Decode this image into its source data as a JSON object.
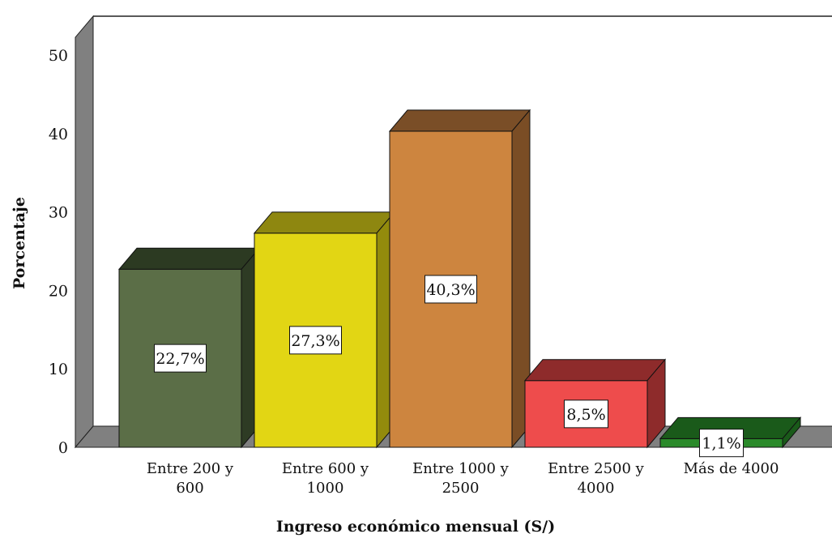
{
  "chart_data": {
    "type": "bar",
    "style": "3d",
    "categories": [
      [
        "Entre 200 y",
        "600"
      ],
      [
        "Entre 600 y",
        "1000"
      ],
      [
        "Entre 1000 y",
        "2500"
      ],
      [
        "Entre 2500 y",
        "4000"
      ],
      [
        "Más de 4000"
      ]
    ],
    "values": [
      22.7,
      27.3,
      40.3,
      8.5,
      1.1
    ],
    "data_labels": [
      "22,7%",
      "27,3%",
      "40,3%",
      "8,5%",
      "1,1%"
    ],
    "colors": [
      {
        "front": "#5b6e47",
        "top": "#2c3a22",
        "side": "#2e3b24"
      },
      {
        "front": "#e2d614",
        "top": "#8e8710",
        "side": "#938b0c"
      },
      {
        "front": "#cd853f",
        "top": "#7a4e27",
        "side": "#7a4d25"
      },
      {
        "front": "#ee4c4c",
        "top": "#8e2b2b",
        "side": "#8e2b2b"
      },
      {
        "front": "#2a8a2a",
        "top": "#1a5a1a",
        "side": "#1a5a1a"
      }
    ],
    "xlabel": "Ingreso económico mensual (S/)",
    "ylabel": "Porcentaje",
    "ylim": [
      0,
      50
    ],
    "yticks": [
      0,
      10,
      20,
      30,
      40,
      50
    ],
    "grid": false,
    "legend": "none",
    "wall_color": "#808080"
  }
}
